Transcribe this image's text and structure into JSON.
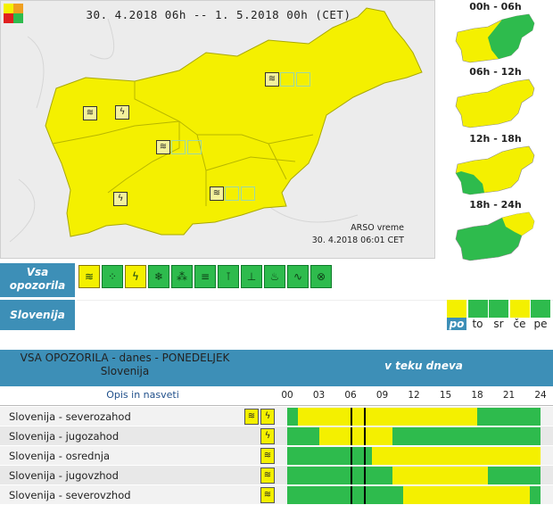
{
  "header": {
    "title": "30. 4.2018  06h   -- 1. 5.2018  00h    (CET)"
  },
  "map": {
    "credit_line1": "ARSO vreme",
    "credit_line2": "30. 4.2018  06:01 CET"
  },
  "small_maps": [
    {
      "label": "00h - 06h"
    },
    {
      "label": "06h - 12h"
    },
    {
      "label": "12h - 18h"
    },
    {
      "label": "18h - 24h"
    }
  ],
  "warnings": {
    "label_line1": "Vsa",
    "label_line2": "opozorila",
    "icons": [
      {
        "name": "wind-icon",
        "glyph": "≋",
        "active": true
      },
      {
        "name": "rain-icon",
        "glyph": "⁘",
        "active": false
      },
      {
        "name": "thunderstorm-icon",
        "glyph": "ϟ",
        "active": true
      },
      {
        "name": "snow-icon",
        "glyph": "❄",
        "active": false
      },
      {
        "name": "hail-icon",
        "glyph": "⁂",
        "active": false
      },
      {
        "name": "fog-icon",
        "glyph": "≡",
        "active": false
      },
      {
        "name": "high-temperature-icon",
        "glyph": "⊺",
        "active": false
      },
      {
        "name": "low-temperature-icon",
        "glyph": "⊥",
        "active": false
      },
      {
        "name": "fire-icon",
        "glyph": "♨",
        "active": false
      },
      {
        "name": "coastal-icon",
        "glyph": "∿",
        "active": false
      },
      {
        "name": "flood-icon",
        "glyph": "⊗",
        "active": false
      }
    ]
  },
  "region": {
    "label": "Slovenija"
  },
  "days": [
    {
      "label": "po",
      "color": "#f4f000",
      "active": true
    },
    {
      "label": "to",
      "color": "#2ebb4d",
      "active": false
    },
    {
      "label": "sr",
      "color": "#2ebb4d",
      "active": false
    },
    {
      "label": "če",
      "color": "#f4f000",
      "active": false
    },
    {
      "label": "pe",
      "color": "#2ebb4d",
      "active": false
    }
  ],
  "table": {
    "title_line1": "VSA OPOZORILA - danes - PONEDELJEK",
    "title_line2": "Slovenija",
    "time_title": "v teku dneva",
    "desc_header": "Opis in nasveti",
    "hours": [
      "00",
      "03",
      "06",
      "09",
      "12",
      "15",
      "18",
      "21",
      "24"
    ],
    "rows": [
      {
        "name": "Slovenija - severozahod",
        "icons": [
          "wind-icon",
          "thunderstorm-icon"
        ],
        "yellow": [
          [
            1,
            18
          ]
        ]
      },
      {
        "name": "Slovenija - jugozahod",
        "icons": [
          "thunderstorm-icon"
        ],
        "yellow": [
          [
            3,
            10
          ]
        ]
      },
      {
        "name": "Slovenija - osrednja",
        "icons": [
          "wind-icon"
        ],
        "yellow": [
          [
            8,
            24
          ]
        ]
      },
      {
        "name": "Slovenija - jugovzhod",
        "icons": [
          "wind-icon"
        ],
        "yellow": [
          [
            10,
            19
          ]
        ]
      },
      {
        "name": "Slovenija - severovzhod",
        "icons": [
          "wind-icon"
        ],
        "yellow": [
          [
            11,
            23
          ]
        ]
      }
    ]
  },
  "colors": {
    "yellow": "#f4f000",
    "green": "#2ebb4d",
    "header_blue": "#3d8fb7"
  }
}
